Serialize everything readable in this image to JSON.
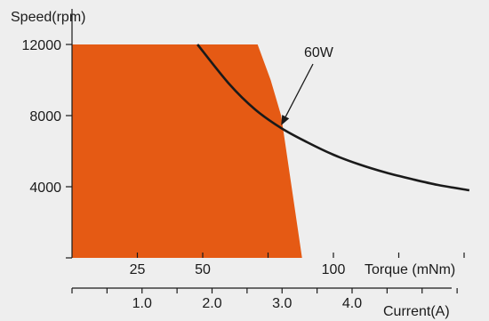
{
  "chart_data": {
    "type": "area",
    "ylabel": "Speed(rpm)",
    "xlabel": "Torque (mNm)",
    "x2label": "Current(A)",
    "ylim": [
      0,
      14000
    ],
    "xlim": [
      0,
      150
    ],
    "yticks": [
      {
        "value": 4000,
        "label": "4000"
      },
      {
        "value": 8000,
        "label": "8000"
      },
      {
        "value": 12000,
        "label": "12000"
      }
    ],
    "xticks": [
      {
        "value": 25,
        "label": "25"
      },
      {
        "value": 50,
        "label": "50"
      },
      {
        "value": 75,
        "label": ""
      },
      {
        "value": 100,
        "label": "100"
      },
      {
        "value": 125,
        "label": ""
      },
      {
        "value": 150,
        "label": ""
      }
    ],
    "x2lim": [
      0,
      5.6
    ],
    "x2ticks": [
      {
        "value": 0.5,
        "label": ""
      },
      {
        "value": 1.0,
        "label": "1.0"
      },
      {
        "value": 1.5,
        "label": ""
      },
      {
        "value": 2.0,
        "label": "2.0"
      },
      {
        "value": 2.5,
        "label": ""
      },
      {
        "value": 3.0,
        "label": "3.0"
      },
      {
        "value": 3.5,
        "label": ""
      },
      {
        "value": 4.0,
        "label": "4.0"
      },
      {
        "value": 4.5,
        "label": ""
      },
      {
        "value": 5.0,
        "label": ""
      },
      {
        "value": 5.5,
        "label": ""
      }
    ],
    "operating_region": {
      "color": "#e55a14",
      "points": [
        [
          0,
          0
        ],
        [
          0,
          12000
        ],
        [
          71,
          12000
        ],
        [
          76,
          10000
        ],
        [
          80,
          8000
        ],
        [
          84,
          4000
        ],
        [
          88,
          0
        ]
      ]
    },
    "series": [
      {
        "name": "60W",
        "color": "#1a1a1a",
        "points": [
          [
            48,
            12000
          ],
          [
            60,
            9800
          ],
          [
            70,
            8350
          ],
          [
            80,
            7300
          ],
          [
            90,
            6500
          ],
          [
            100,
            5800
          ],
          [
            110,
            5250
          ],
          [
            120,
            4800
          ],
          [
            130,
            4430
          ],
          [
            140,
            4100
          ],
          [
            152,
            3800
          ]
        ]
      }
    ],
    "annotation": {
      "text": "60W",
      "arrow_to": [
        80,
        7450
      ]
    }
  }
}
